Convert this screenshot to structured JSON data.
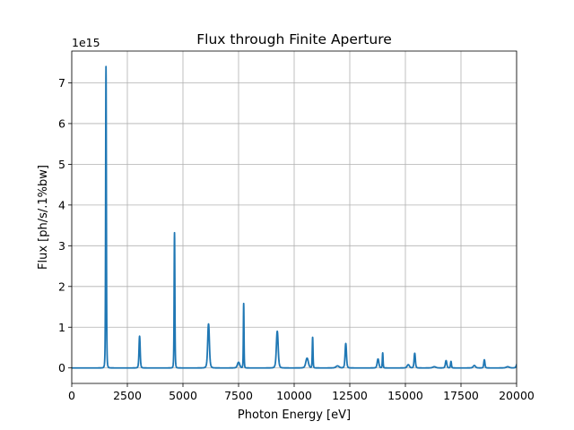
{
  "chart_data": {
    "type": "line",
    "title": "Flux through Finite Aperture",
    "xlabel": "Photon Energy [eV]",
    "ylabel": "Flux [ph/s/.1%bw]",
    "y_offset_label": "1e15",
    "xlim": [
      0,
      20000
    ],
    "ylim": [
      -0.38,
      7.78
    ],
    "x_ticks": [
      0,
      2500,
      5000,
      7500,
      10000,
      12500,
      15000,
      17500,
      20000
    ],
    "x_tick_labels": [
      "0",
      "2500",
      "5000",
      "7500",
      "10000",
      "12500",
      "15000",
      "17500",
      "20000"
    ],
    "y_ticks": [
      0,
      1,
      2,
      3,
      4,
      5,
      6,
      7
    ],
    "y_tick_labels": [
      "0",
      "1",
      "2",
      "3",
      "4",
      "5",
      "6",
      "7"
    ],
    "grid": true,
    "y_unit_scale": 1000000000000000.0,
    "series": [
      {
        "color": "#1f77b4",
        "baseline": 0,
        "x_range": [
          0,
          20000
        ],
        "peaks": [
          {
            "x": 1540,
            "y": 7.4,
            "width": 35
          },
          {
            "x": 3050,
            "y": 0.78,
            "width": 55
          },
          {
            "x": 4620,
            "y": 3.32,
            "width": 35
          },
          {
            "x": 6150,
            "y": 1.08,
            "width": 80
          },
          {
            "x": 7500,
            "y": 0.14,
            "width": 110
          },
          {
            "x": 7730,
            "y": 1.58,
            "width": 30
          },
          {
            "x": 9240,
            "y": 0.9,
            "width": 85
          },
          {
            "x": 10580,
            "y": 0.24,
            "width": 120
          },
          {
            "x": 10830,
            "y": 0.75,
            "width": 35
          },
          {
            "x": 11950,
            "y": 0.05,
            "width": 150
          },
          {
            "x": 12320,
            "y": 0.6,
            "width": 65
          },
          {
            "x": 13770,
            "y": 0.22,
            "width": 80
          },
          {
            "x": 13980,
            "y": 0.37,
            "width": 35
          },
          {
            "x": 15130,
            "y": 0.08,
            "width": 110
          },
          {
            "x": 15420,
            "y": 0.36,
            "width": 60
          },
          {
            "x": 16300,
            "y": 0.03,
            "width": 150
          },
          {
            "x": 16830,
            "y": 0.18,
            "width": 70
          },
          {
            "x": 17050,
            "y": 0.16,
            "width": 45
          },
          {
            "x": 18100,
            "y": 0.06,
            "width": 110
          },
          {
            "x": 18550,
            "y": 0.2,
            "width": 55
          },
          {
            "x": 19600,
            "y": 0.03,
            "width": 150
          },
          {
            "x": 20050,
            "y": 0.18,
            "width": 90
          }
        ]
      }
    ]
  }
}
